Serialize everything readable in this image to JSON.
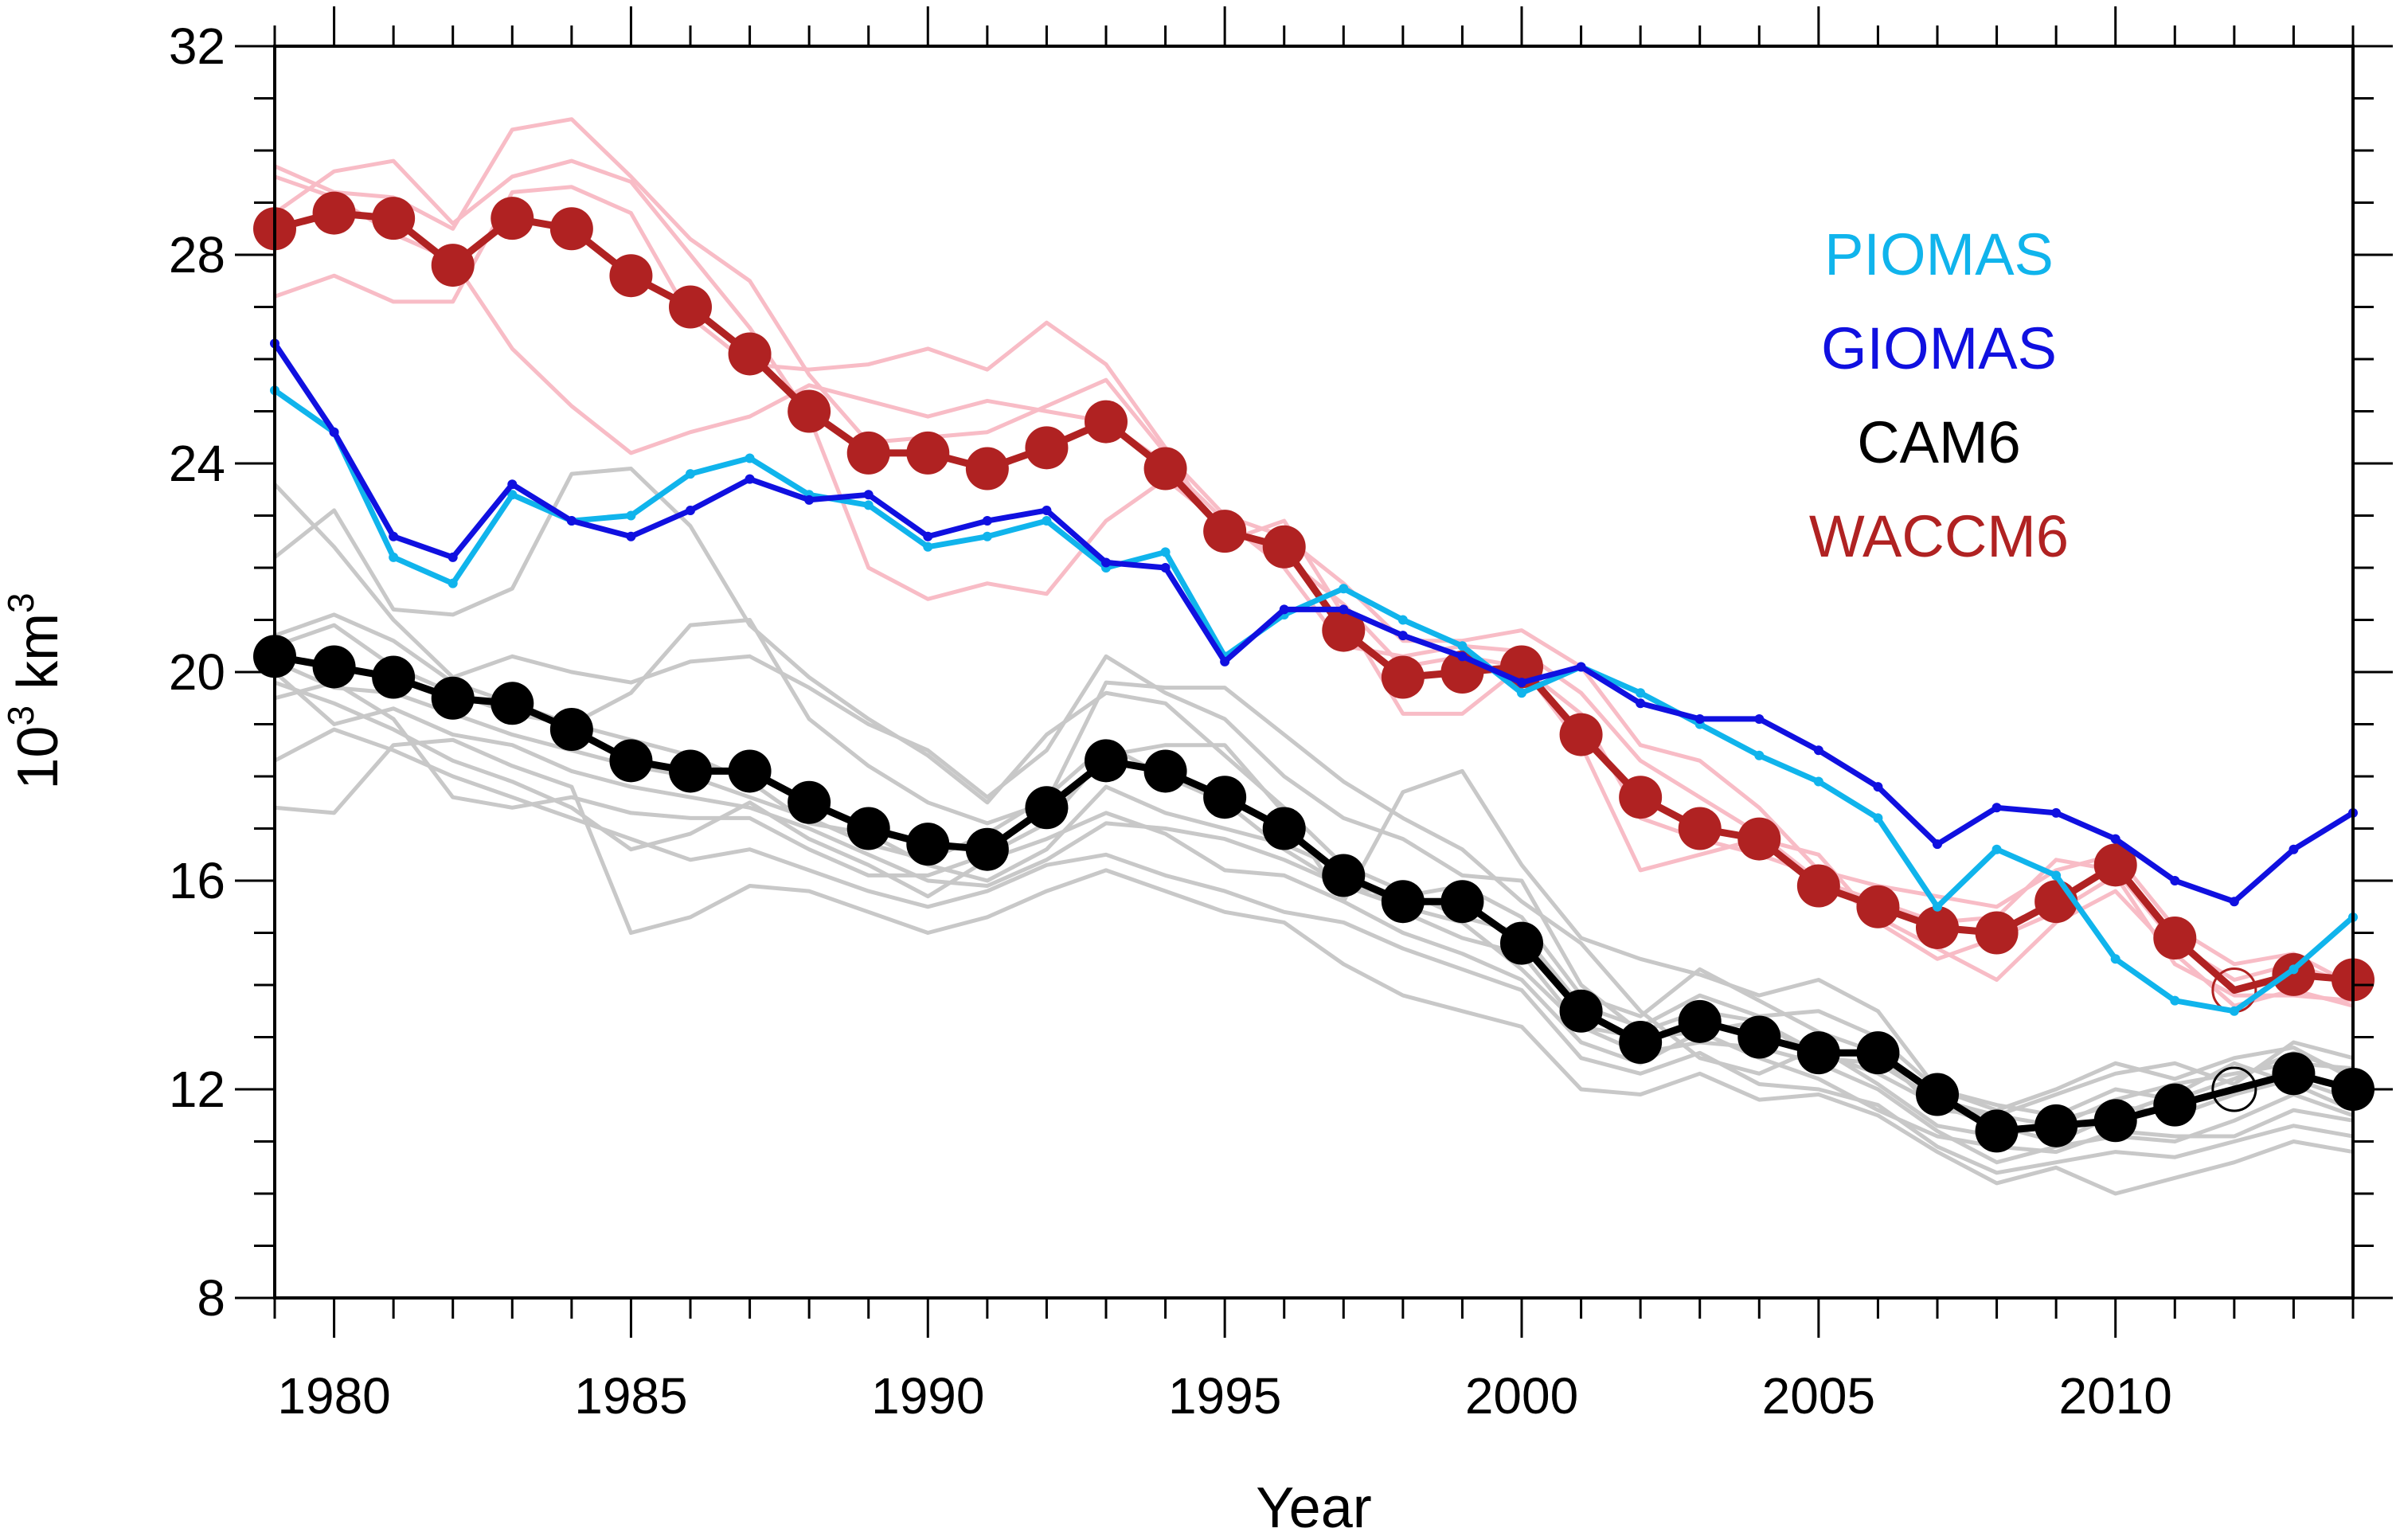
{
  "chart_data": {
    "type": "line",
    "xlabel": "Year",
    "ylabel_base": "10",
    "ylabel_sup1": "3",
    "ylabel_unit": " km",
    "ylabel_sup2": "3",
    "xlim": [
      1979,
      2014
    ],
    "ylim": [
      8,
      32
    ],
    "x_ticks": [
      1980,
      1985,
      1990,
      1995,
      2000,
      2005,
      2010
    ],
    "y_ticks": [
      8,
      12,
      16,
      20,
      24,
      28,
      32
    ],
    "x": [
      1979,
      1980,
      1981,
      1982,
      1983,
      1984,
      1985,
      1986,
      1987,
      1988,
      1989,
      1990,
      1991,
      1992,
      1993,
      1994,
      1995,
      1996,
      1997,
      1998,
      1999,
      2000,
      2001,
      2002,
      2003,
      2004,
      2005,
      2006,
      2007,
      2008,
      2009,
      2010,
      2011,
      2012,
      2013,
      2014
    ],
    "legend": {
      "placement": "top-right",
      "entries": [
        {
          "label": "PIOMAS",
          "color": "#10b4ec"
        },
        {
          "label": "GIOMAS",
          "color": "#1010e0"
        },
        {
          "label": "CAM6",
          "color": "#000000"
        },
        {
          "label": "WACCM6",
          "color": "#b02222"
        }
      ]
    },
    "series": [
      {
        "key": "piomas",
        "color": "#10b4ec",
        "markers": "small",
        "values": [
          25.4,
          24.6,
          22.2,
          21.7,
          23.4,
          22.9,
          23.0,
          23.8,
          24.1,
          23.4,
          23.2,
          22.4,
          22.6,
          22.9,
          22.0,
          22.3,
          20.3,
          21.1,
          21.6,
          21.0,
          20.5,
          19.6,
          20.1,
          19.6,
          19.0,
          18.4,
          17.9,
          17.2,
          15.5,
          16.6,
          16.1,
          14.5,
          13.7,
          13.5,
          14.3,
          15.3
        ]
      },
      {
        "key": "giomas",
        "color": "#1010e0",
        "markers": "small",
        "values": [
          26.3,
          24.6,
          22.6,
          22.2,
          23.6,
          22.9,
          22.6,
          23.1,
          23.7,
          23.3,
          23.4,
          22.6,
          22.9,
          23.1,
          22.1,
          22.0,
          20.2,
          21.2,
          21.2,
          20.7,
          20.3,
          19.8,
          20.1,
          19.4,
          19.1,
          19.1,
          18.5,
          17.8,
          16.7,
          17.4,
          17.3,
          16.8,
          16.0,
          15.6,
          16.6,
          17.3
        ]
      },
      {
        "key": "cam6",
        "color": "#000000",
        "markers": "large",
        "values": [
          20.3,
          20.1,
          19.9,
          19.5,
          19.4,
          18.9,
          18.3,
          18.1,
          18.1,
          17.5,
          17.0,
          16.7,
          16.6,
          17.4,
          18.3,
          18.1,
          17.6,
          17.0,
          16.1,
          15.6,
          15.6,
          14.8,
          13.5,
          12.9,
          13.3,
          13.0,
          12.7,
          12.7,
          11.9,
          11.2,
          11.3,
          11.4,
          11.7,
          12.0,
          12.3,
          12.0
        ]
      },
      {
        "key": "waccm6",
        "color": "#b02222",
        "markers": "large",
        "values": [
          28.5,
          28.8,
          28.7,
          27.8,
          28.7,
          28.5,
          27.6,
          27.0,
          26.1,
          25.0,
          24.2,
          24.2,
          23.9,
          24.3,
          24.8,
          23.9,
          22.7,
          22.4,
          20.8,
          19.9,
          20.0,
          20.1,
          18.8,
          17.6,
          17.0,
          16.8,
          15.9,
          15.5,
          15.1,
          15.0,
          15.6,
          16.3,
          14.9,
          13.9,
          14.2,
          14.1
        ]
      }
    ],
    "cam6_members": [
      {
        "values": [
          23.6,
          22.4,
          21.0,
          19.9,
          20.3,
          20.0,
          19.8,
          20.2,
          20.3,
          19.7,
          19.0,
          18.5,
          17.6,
          18.5,
          20.3,
          19.6,
          19.1,
          18.0,
          17.2,
          16.8,
          16.1,
          16.0,
          14.0,
          13.1,
          13.5,
          13.3,
          12.6,
          12.5,
          11.8,
          11.5,
          11.3,
          11.8,
          12.1,
          12.3,
          12.5,
          12.4
        ]
      },
      {
        "values": [
          22.2,
          23.1,
          21.2,
          21.1,
          21.6,
          23.8,
          23.9,
          22.8,
          20.9,
          19.9,
          19.1,
          18.4,
          17.5,
          18.8,
          19.6,
          19.4,
          18.4,
          17.4,
          16.3,
          15.8,
          15.3,
          15.0,
          13.6,
          13.2,
          13.8,
          13.4,
          13.5,
          13.0,
          12.0,
          11.7,
          11.5,
          12.0,
          11.8,
          12.2,
          12.7,
          12.3
        ]
      },
      {
        "values": [
          20.5,
          20.9,
          20.1,
          19.6,
          19.2,
          19.0,
          19.6,
          20.9,
          21.0,
          19.1,
          18.2,
          17.5,
          17.1,
          17.5,
          19.8,
          19.7,
          19.7,
          18.8,
          17.9,
          17.2,
          16.6,
          15.6,
          14.8,
          13.5,
          12.6,
          12.3,
          12.8,
          12.1,
          11.3,
          11.1,
          11.4,
          11.7,
          11.5,
          11.9,
          12.2,
          11.8
        ]
      },
      {
        "values": [
          20.0,
          19.0,
          19.3,
          18.8,
          18.6,
          18.1,
          17.8,
          17.6,
          17.4,
          17.0,
          16.5,
          16.0,
          15.9,
          16.4,
          17.1,
          17.0,
          16.8,
          16.4,
          15.9,
          15.5,
          15.2,
          14.3,
          13.2,
          12.7,
          12.9,
          12.8,
          12.5,
          12.0,
          11.2,
          10.6,
          10.9,
          11.1,
          11.0,
          11.4,
          11.9,
          11.5
        ]
      },
      {
        "values": [
          19.8,
          19.4,
          18.9,
          18.3,
          17.9,
          17.4,
          16.6,
          16.9,
          17.5,
          16.8,
          16.3,
          15.7,
          16.4,
          16.8,
          17.3,
          16.9,
          16.2,
          16.1,
          15.6,
          15.0,
          14.6,
          14.1,
          12.9,
          12.5,
          13.1,
          12.6,
          12.2,
          11.6,
          11.1,
          10.9,
          10.8,
          11.2,
          11.1,
          11.1,
          11.6,
          11.4
        ]
      },
      {
        "values": [
          18.3,
          18.9,
          18.5,
          18.0,
          17.6,
          17.2,
          16.8,
          16.4,
          16.6,
          16.2,
          15.8,
          15.5,
          15.8,
          16.3,
          16.5,
          16.1,
          15.8,
          15.4,
          15.2,
          14.7,
          14.3,
          13.9,
          12.6,
          12.3,
          12.7,
          12.1,
          12.0,
          11.7,
          10.9,
          10.4,
          10.6,
          10.8,
          10.7,
          11.0,
          11.3,
          11.1
        ]
      },
      {
        "values": [
          17.4,
          17.3,
          18.6,
          18.7,
          18.2,
          17.8,
          15.0,
          15.3,
          15.9,
          15.8,
          15.4,
          15.0,
          15.3,
          15.8,
          16.2,
          15.8,
          15.4,
          15.2,
          14.4,
          13.8,
          13.5,
          13.2,
          12.0,
          11.9,
          12.3,
          11.8,
          11.9,
          11.5,
          10.8,
          10.2,
          10.5,
          10.0,
          10.3,
          10.6,
          11.0,
          10.8
        ]
      },
      {
        "values": [
          19.5,
          19.8,
          19.1,
          17.6,
          17.4,
          17.6,
          17.3,
          17.2,
          17.2,
          16.6,
          16.1,
          16.1,
          16.5,
          17.1,
          18.4,
          18.6,
          18.6,
          17.3,
          15.6,
          17.7,
          18.1,
          16.3,
          14.9,
          14.5,
          14.2,
          13.8,
          14.1,
          13.5,
          12.0,
          11.6,
          12.0,
          12.5,
          12.2,
          12.6,
          12.8,
          12.2
        ]
      },
      {
        "values": [
          20.2,
          19.7,
          19.6,
          19.2,
          18.8,
          18.5,
          18.2,
          18.0,
          17.6,
          17.2,
          16.7,
          16.4,
          16.9,
          17.6,
          18.6,
          18.0,
          17.5,
          16.6,
          15.9,
          15.7,
          15.9,
          15.3,
          13.8,
          13.4,
          14.3,
          13.7,
          13.1,
          12.7,
          11.6,
          11.5,
          11.9,
          12.3,
          12.5,
          12.1,
          12.9,
          12.6
        ]
      },
      {
        "values": [
          20.7,
          21.1,
          20.6,
          19.8,
          19.4,
          19.0,
          18.7,
          18.4,
          17.9,
          17.1,
          16.9,
          16.3,
          16.0,
          16.6,
          17.8,
          17.3,
          17.0,
          16.7,
          16.2,
          15.4,
          14.9,
          14.6,
          13.2,
          13.0,
          13.1,
          13.3,
          12.7,
          12.3,
          11.7,
          11.3,
          11.0,
          11.5,
          11.9,
          12.5,
          12.1,
          11.6
        ]
      }
    ],
    "waccm6_members": [
      {
        "values": [
          29.7,
          29.2,
          29.1,
          28.5,
          30.4,
          30.6,
          29.5,
          28.3,
          27.5,
          25.7,
          24.4,
          24.5,
          24.6,
          25.1,
          25.6,
          24.2,
          23.0,
          22.6,
          21.7,
          20.6,
          20.6,
          20.8,
          20.1,
          18.6,
          18.3,
          17.4,
          16.2,
          15.9,
          15.7,
          15.5,
          16.2,
          16.5,
          15.1,
          14.4,
          14.6,
          14.0
        ]
      },
      {
        "values": [
          28.8,
          29.6,
          29.8,
          28.6,
          29.5,
          29.8,
          29.4,
          28.0,
          26.6,
          24.9,
          22.0,
          21.4,
          21.7,
          21.5,
          22.9,
          23.7,
          22.8,
          22.2,
          21.3,
          20.1,
          20.3,
          20.1,
          19.2,
          17.2,
          16.8,
          16.5,
          16.1,
          15.3,
          14.7,
          14.1,
          15.2,
          15.8,
          14.6,
          13.6,
          13.9,
          13.6
        ]
      },
      {
        "values": [
          27.2,
          27.6,
          27.1,
          27.1,
          29.2,
          29.3,
          28.8,
          26.8,
          25.9,
          25.8,
          25.9,
          26.2,
          25.8,
          26.7,
          25.9,
          24.3,
          22.5,
          22.9,
          21.1,
          19.2,
          19.2,
          20.1,
          18.6,
          16.2,
          16.5,
          16.8,
          16.5,
          15.2,
          14.5,
          14.9,
          15.4,
          16.1,
          14.4,
          13.8,
          13.8,
          13.7
        ]
      },
      {
        "values": [
          29.5,
          29.1,
          28.4,
          27.9,
          26.2,
          25.1,
          24.2,
          24.6,
          24.9,
          25.5,
          25.2,
          24.9,
          25.2,
          25.0,
          24.8,
          24.0,
          22.9,
          22.0,
          20.5,
          20.3,
          20.5,
          20.4,
          19.6,
          18.3,
          17.6,
          16.9,
          16.0,
          15.6,
          15.2,
          15.3,
          16.4,
          16.2,
          14.8,
          14.1,
          14.4,
          14.0
        ]
      }
    ],
    "open_marker_year": 2012
  }
}
